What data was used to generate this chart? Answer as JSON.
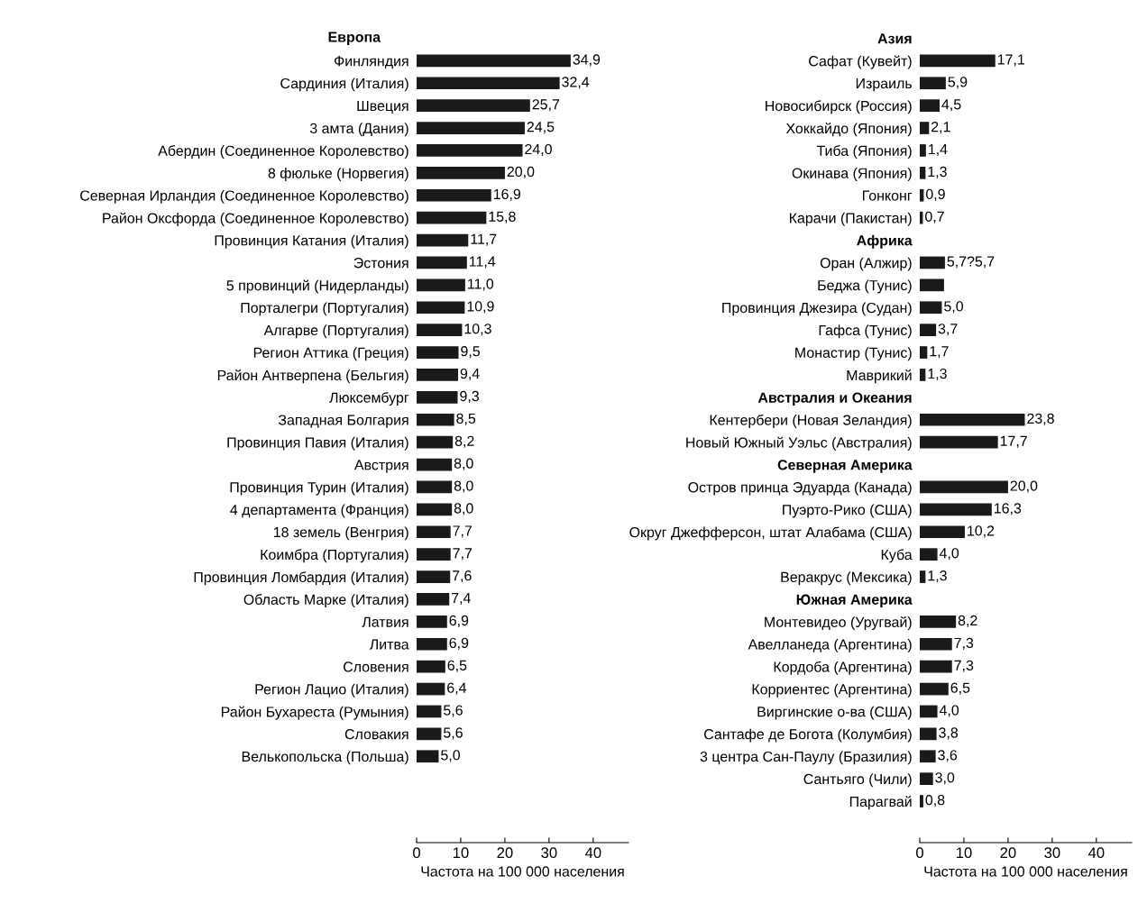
{
  "chart_data": [
    {
      "type": "bar",
      "orientation": "horizontal",
      "title": "Европа",
      "xlabel": "Частота на 100 000 населения",
      "xlim": [
        0,
        48
      ],
      "xticks": [
        0,
        10,
        20,
        30,
        40
      ],
      "grid": false,
      "color": "#1a1a1a",
      "categories": [
        "Финляндия",
        "Сардиния (Италия)",
        "Швеция",
        "3 амта (Дания)",
        "Абердин (Соединенное Королевство)",
        "8 фюльке (Норвегия)",
        "Северная Ирландия (Соединенное Королевство)",
        "Район Оксфорда (Соединенное Королевство)",
        "Провинция Катания (Италия)",
        "Эстония",
        "5 провинций (Нидерланды)",
        "Порталегри (Португалия)",
        "Алгарве (Португалия)",
        "Регион Аттика (Греция)",
        "Район Антверпена (Бельгия)",
        "Люксембург",
        "Западная Болгария",
        "Провинция Павия (Италия)",
        "Австрия",
        "Провинция Турин (Италия)",
        "4 департамента (Франция)",
        "18 земель (Венгрия)",
        "Коимбра (Португалия)",
        "Провинция Ломбардия (Италия)",
        "Область Марке (Италия)",
        "Латвия",
        "Литва",
        "Словения",
        "Регион Лацио (Италия)",
        "Район Бухареста (Румыния)",
        "Словакия",
        "Велькопольска (Польша)"
      ],
      "values": [
        34.9,
        32.4,
        25.7,
        24.5,
        24.0,
        20.0,
        16.9,
        15.8,
        11.7,
        11.4,
        11.0,
        10.9,
        10.3,
        9.5,
        9.4,
        9.3,
        8.5,
        8.2,
        8.0,
        8.0,
        8.0,
        7.7,
        7.7,
        7.6,
        7.4,
        6.9,
        6.9,
        6.5,
        6.4,
        5.6,
        5.6,
        5.0
      ],
      "value_labels": [
        "34,9",
        "32,4",
        "25,7",
        "24,5",
        "24,0",
        "20,0",
        "16,9",
        "15,8",
        "11,7",
        "11,4",
        "11,0",
        "10,9",
        "10,3",
        "9,5",
        "9,4",
        "9,3",
        "8,5",
        "8,2",
        "8,0",
        "8,0",
        "8,0",
        "7,7",
        "7,7",
        "7,6",
        "7,4",
        "6,9",
        "6,9",
        "6,5",
        "6,4",
        "5,6",
        "5,6",
        "5,0"
      ]
    },
    {
      "type": "bar",
      "orientation": "horizontal",
      "xlabel": "Частота на 100 000 населения",
      "xlim": [
        0,
        48
      ],
      "xticks": [
        0,
        10,
        20,
        30,
        40
      ],
      "grid": false,
      "color": "#1a1a1a",
      "categories": [
        "Азия",
        "Сафат (Кувейт)",
        "Израиль",
        "Новосибирск (Россия)",
        "Хоккайдо (Япония)",
        "Тиба (Япония)",
        "Окинава (Япония)",
        "Гонконг",
        "Карачи (Пакистан)",
        "Африка",
        "Оран (Алжир)",
        "Беджа (Тунис)",
        "Провинция Джезира (Судан)",
        "Гафса (Тунис)",
        "Монастир (Тунис)",
        "Маврикий",
        "Австралия и Океания",
        "Кентербери (Новая Зеландия)",
        "Новый Южный Уэльс (Австралия)",
        "Северная Америка",
        "Остров принца Эдуарда (Канада)",
        "Пуэрто-Рико (США)",
        "Округ Джефферсон, штат Алабама (США)",
        "Куба",
        "Веракрус (Мексика)",
        "Южная Америка",
        "Монтевидео (Уругвай)",
        "Авелланеда (Аргентина)",
        "Кордоба (Аргентина)",
        "Корриентес (Аргентина)",
        "Виргинские о-ва (США)",
        "Сантафе де Богота (Колумбия)",
        "3 центра Сан-Паулу (Бразилия)",
        "Сантьяго (Чили)",
        "Парагвай"
      ],
      "values": [
        null,
        17.1,
        5.9,
        4.5,
        2.1,
        1.4,
        1.3,
        0.9,
        0.7,
        null,
        5.7,
        5.5,
        5.0,
        3.7,
        1.7,
        1.3,
        null,
        23.8,
        17.7,
        null,
        20.0,
        16.3,
        10.2,
        4.0,
        1.3,
        null,
        8.2,
        7.3,
        7.3,
        6.5,
        4.0,
        3.8,
        3.6,
        3.0,
        0.8
      ],
      "value_labels": [
        null,
        "17,1",
        "5,9",
        "4,5",
        "2,1",
        "1,4",
        "1,3",
        "0,9",
        "0,7",
        null,
        "5,7?5,7",
        null,
        "5,0",
        "3,7",
        "1,7",
        "1,3",
        null,
        "23,8",
        "17,7",
        null,
        "20,0",
        "16,3",
        "10,2",
        "4,0",
        "1,3",
        null,
        "8,2",
        "7,3",
        "7,3",
        "6,5",
        "4,0",
        "3,8",
        "3,6",
        "3,0",
        "0,8"
      ]
    }
  ]
}
